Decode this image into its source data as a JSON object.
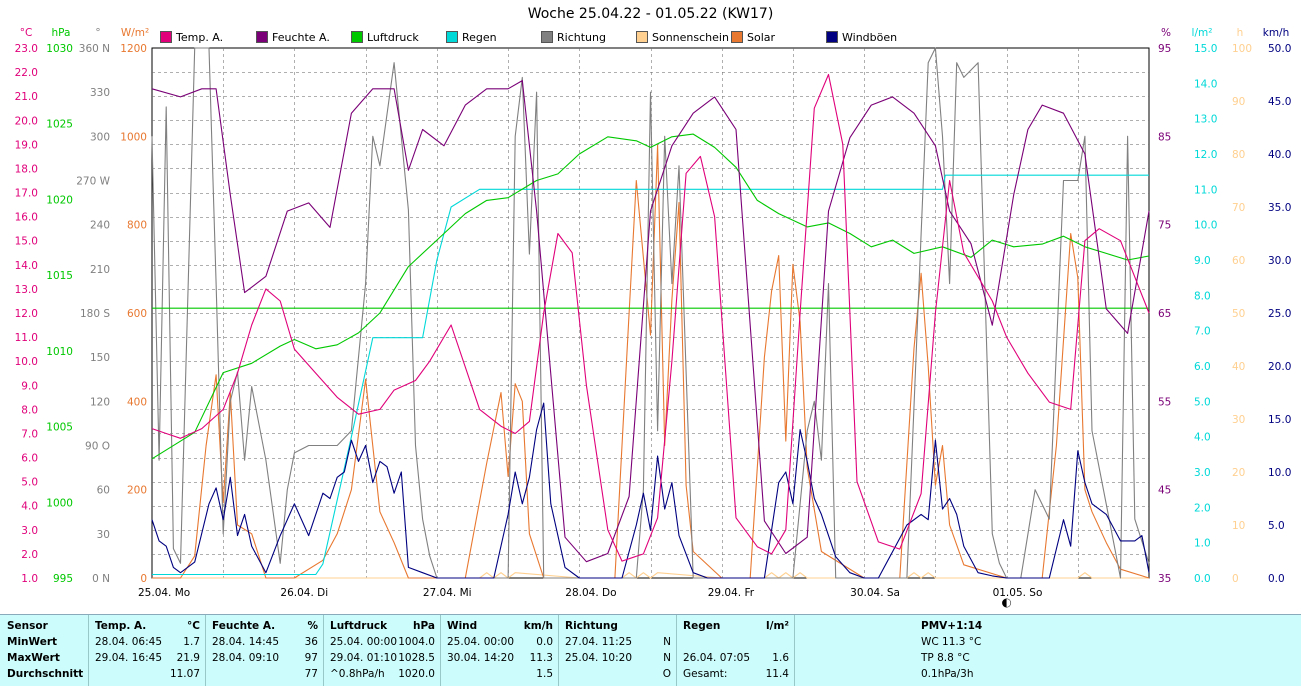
{
  "title": "Woche 25.04.22 - 01.05.22 (KW17)",
  "legend": [
    {
      "label": "Temp. A.",
      "color": "#e0007a"
    },
    {
      "label": "Feuchte A.",
      "color": "#7a0077"
    },
    {
      "label": "Luftdruck",
      "color": "#00c800"
    },
    {
      "label": "Regen",
      "color": "#00d8d8"
    },
    {
      "label": "Richtung",
      "color": "#808080"
    },
    {
      "label": "Sonnenschein",
      "color": "#ffd090"
    },
    {
      "label": "Solar",
      "color": "#e87830"
    },
    {
      "label": "Windböen",
      "color": "#000080"
    }
  ],
  "axis_units": {
    "temp": "°C",
    "pressure": "hPa",
    "direction": "°",
    "solar": "W/m²",
    "humidity": "%",
    "rain": "l/m²",
    "sunshine": "h",
    "wind": "km/h"
  },
  "chart_data": {
    "type": "line",
    "title": "Woche 25.04.22 - 01.05.22 (KW17)",
    "x_labels": [
      "25.04. Mo",
      "26.04. Di",
      "27.04. Mi",
      "28.04. Do",
      "29.04. Fr",
      "30.04. Sa",
      "01.05. So"
    ],
    "x_range_days": [
      0,
      7
    ],
    "grid": true,
    "axes": {
      "temp": {
        "min": 1.0,
        "max": 23.0,
        "ticks": [
          "1.0",
          "2.0",
          "3.0",
          "4.0",
          "5.0",
          "6.0",
          "7.0",
          "8.0",
          "9.0",
          "10.0",
          "11.0",
          "12.0",
          "13.0",
          "14.0",
          "15.0",
          "16.0",
          "17.0",
          "18.0",
          "19.0",
          "20.0",
          "21.0",
          "22.0",
          "23.0"
        ]
      },
      "pressure": {
        "min": 995,
        "max": 1035,
        "ticks": [
          "995",
          "1000",
          "1005",
          "1010",
          "1015",
          "1020",
          "1025",
          "1030"
        ]
      },
      "direction": {
        "min": 0,
        "max": 360,
        "ticks": [
          "0 N",
          "30",
          "60",
          "90 O",
          "120",
          "150",
          "180 S",
          "210",
          "240",
          "270 W",
          "300",
          "330",
          "360 N"
        ]
      },
      "solar": {
        "min": 0,
        "max": 1200,
        "ticks": [
          "0",
          "200",
          "400",
          "600",
          "800",
          "1000",
          "1200"
        ]
      },
      "humidity": {
        "min": 35,
        "max": 100,
        "ticks": [
          "35",
          "45",
          "55",
          "65",
          "75",
          "85",
          "95"
        ]
      },
      "rain": {
        "min": 0,
        "max": 15,
        "ticks": [
          "0.0",
          "1.0",
          "2.0",
          "3.0",
          "4.0",
          "5.0",
          "6.0",
          "7.0",
          "8.0",
          "9.0",
          "10.0",
          "11.0",
          "12.0",
          "13.0",
          "14.0",
          "15.0"
        ]
      },
      "sunshine": {
        "min": 0,
        "max": 100,
        "ticks": [
          "0",
          "10",
          "20",
          "30",
          "40",
          "50",
          "60",
          "70",
          "80",
          "90",
          "100"
        ]
      },
      "wind": {
        "min": 0,
        "max": 50,
        "ticks": [
          "0.0",
          "5.0",
          "10.0",
          "15.0",
          "20.0",
          "25.0",
          "30.0",
          "35.0",
          "40.0",
          "45.0",
          "50.0"
        ]
      }
    },
    "series": [
      {
        "name": "Temp. A.",
        "axis": "temp",
        "color": "#e0007a",
        "x": [
          0,
          0.1,
          0.2,
          0.35,
          0.5,
          0.6,
          0.7,
          0.8,
          0.9,
          1.0,
          1.15,
          1.3,
          1.45,
          1.6,
          1.7,
          1.85,
          1.95,
          2.1,
          2.3,
          2.45,
          2.55,
          2.65,
          2.75,
          2.85,
          2.95,
          3.05,
          3.2,
          3.3,
          3.45,
          3.55,
          3.65,
          3.75,
          3.85,
          3.95,
          4.1,
          4.25,
          4.35,
          4.45,
          4.55,
          4.65,
          4.75,
          4.85,
          4.95,
          5.1,
          5.25,
          5.4,
          5.5,
          5.6,
          5.7,
          5.8,
          5.9,
          6.0,
          6.15,
          6.3,
          6.45,
          6.55,
          6.65,
          6.8,
          7.0
        ],
        "y": [
          7.2,
          7.0,
          6.8,
          7.2,
          8.0,
          9.5,
          11.5,
          13.0,
          12.5,
          10.5,
          9.5,
          8.5,
          7.8,
          8.0,
          8.8,
          9.2,
          10.0,
          11.5,
          8.0,
          7.3,
          7.0,
          7.5,
          12.0,
          15.3,
          14.5,
          9.0,
          3.0,
          1.7,
          2.0,
          3.5,
          10.0,
          17.8,
          18.5,
          16.0,
          3.5,
          2.3,
          2.0,
          3.0,
          12.0,
          20.5,
          21.9,
          19.0,
          5.0,
          2.5,
          2.2,
          4.5,
          12.0,
          17.5,
          14.5,
          13.5,
          12.5,
          11.0,
          9.5,
          8.3,
          8.0,
          15.0,
          15.5,
          15.0,
          12.0
        ]
      },
      {
        "name": "Feuchte A.",
        "axis": "humidity",
        "color": "#7a0077",
        "x": [
          0,
          0.2,
          0.35,
          0.45,
          0.55,
          0.65,
          0.8,
          0.95,
          1.1,
          1.25,
          1.4,
          1.55,
          1.7,
          1.8,
          1.9,
          2.05,
          2.2,
          2.35,
          2.5,
          2.6,
          2.7,
          2.8,
          2.9,
          3.05,
          3.2,
          3.35,
          3.5,
          3.65,
          3.8,
          3.95,
          4.1,
          4.3,
          4.45,
          4.6,
          4.75,
          4.9,
          5.05,
          5.2,
          5.35,
          5.5,
          5.6,
          5.75,
          5.9,
          6.05,
          6.15,
          6.25,
          6.4,
          6.55,
          6.7,
          6.85,
          7.0
        ],
        "y": [
          95,
          94,
          95,
          95,
          82,
          70,
          72,
          80,
          81,
          78,
          92,
          95,
          95,
          85,
          90,
          88,
          93,
          95,
          95,
          96,
          80,
          60,
          40,
          37,
          38,
          45,
          80,
          88,
          92,
          94,
          90,
          42,
          38,
          40,
          80,
          89,
          93,
          94,
          92,
          88,
          80,
          76,
          66,
          82,
          90,
          93,
          92,
          87,
          68,
          65,
          80
        ]
      },
      {
        "name": "Luftdruck",
        "axis": "pressure",
        "color": "#00c800",
        "x": [
          0,
          0.3,
          0.5,
          0.7,
          0.9,
          1.0,
          1.15,
          1.3,
          1.45,
          1.6,
          1.8,
          2.0,
          2.2,
          2.35,
          2.5,
          2.7,
          2.85,
          3.0,
          3.2,
          3.4,
          3.5,
          3.65,
          3.8,
          3.95,
          4.1,
          4.25,
          4.4,
          4.6,
          4.75,
          4.9,
          5.05,
          5.2,
          5.35,
          5.55,
          5.75,
          5.9,
          6.05,
          6.25,
          6.4,
          6.55,
          6.7,
          6.85,
          7.0
        ],
        "y": [
          1004.0,
          1006.0,
          1010.5,
          1011.2,
          1012.5,
          1013.0,
          1012.3,
          1012.6,
          1013.5,
          1015.0,
          1018.5,
          1020.5,
          1022.5,
          1023.5,
          1023.7,
          1025.0,
          1025.5,
          1027.0,
          1028.3,
          1028.0,
          1027.5,
          1028.3,
          1028.5,
          1027.5,
          1026.0,
          1023.5,
          1022.5,
          1021.5,
          1021.8,
          1021.0,
          1020.0,
          1020.5,
          1019.5,
          1020.0,
          1019.2,
          1020.5,
          1020.0,
          1020.2,
          1020.8,
          1020.0,
          1019.5,
          1019.0,
          1019.3
        ]
      },
      {
        "name": "Regen",
        "axis": "rain",
        "color": "#00d8d8",
        "x": [
          0,
          1.15,
          1.2,
          1.4,
          1.55,
          1.65,
          1.9,
          2.0,
          2.1,
          2.3,
          2.5,
          3.0,
          4.0,
          5.0,
          5.55,
          5.57,
          6.0,
          7.0
        ],
        "y": [
          0.1,
          0.1,
          0.4,
          4.0,
          6.8,
          6.8,
          6.8,
          9.0,
          10.5,
          11.0,
          11.0,
          11.0,
          11.0,
          11.0,
          11.0,
          11.4,
          11.4,
          11.4
        ]
      },
      {
        "name": "Richtung",
        "axis": "direction",
        "color": "#808080",
        "x": [
          0,
          0.05,
          0.1,
          0.15,
          0.2,
          0.3,
          0.4,
          0.45,
          0.5,
          0.55,
          0.6,
          0.65,
          0.7,
          0.8,
          0.9,
          0.95,
          1.0,
          1.1,
          1.2,
          1.3,
          1.4,
          1.5,
          1.55,
          1.6,
          1.7,
          1.8,
          1.85,
          1.9,
          1.95,
          2.0,
          2.2,
          2.4,
          2.5,
          2.55,
          2.6,
          2.65,
          2.7,
          2.75,
          2.8,
          2.9,
          3.0,
          3.2,
          3.4,
          3.45,
          3.5,
          3.55,
          3.6,
          3.65,
          3.7,
          3.8,
          3.9,
          4.0,
          4.2,
          4.4,
          4.5,
          4.6,
          4.65,
          4.7,
          4.75,
          4.8,
          4.9,
          5.0,
          5.1,
          5.3,
          5.45,
          5.5,
          5.55,
          5.6,
          5.65,
          5.7,
          5.8,
          5.9,
          5.95,
          6.0,
          6.1,
          6.2,
          6.3,
          6.4,
          6.5,
          6.55,
          6.6,
          6.7,
          6.8,
          6.85,
          6.9,
          7.0
        ],
        "y": [
          300,
          80,
          320,
          20,
          10,
          360,
          360,
          200,
          30,
          120,
          140,
          80,
          130,
          80,
          10,
          60,
          85,
          90,
          90,
          90,
          100,
          200,
          300,
          280,
          350,
          250,
          90,
          40,
          15,
          0,
          0,
          0,
          0,
          300,
          340,
          220,
          330,
          0,
          0,
          0,
          0,
          0,
          0,
          60,
          330,
          100,
          300,
          200,
          280,
          0,
          0,
          0,
          0,
          0,
          0,
          100,
          120,
          80,
          200,
          0,
          0,
          0,
          0,
          0,
          350,
          360,
          300,
          200,
          350,
          340,
          350,
          30,
          10,
          0,
          0,
          60,
          40,
          270,
          270,
          300,
          100,
          50,
          0,
          300,
          40,
          10
        ]
      },
      {
        "name": "Sonnenschein",
        "axis": "sunshine",
        "color": "#ffd090",
        "x": [
          0,
          2.3,
          2.35,
          2.4,
          2.45,
          2.5,
          2.55,
          3.0,
          3.3,
          3.35,
          3.4,
          3.45,
          3.5,
          3.55,
          4.0,
          4.3,
          4.35,
          4.4,
          4.45,
          4.5,
          4.55,
          4.6,
          5.0,
          5.3,
          5.35,
          5.4,
          5.45,
          5.5,
          6.0,
          6.5,
          6.55,
          6.6,
          7.0
        ],
        "y": [
          0,
          0,
          1,
          0,
          1,
          0,
          1,
          0,
          0,
          1,
          0,
          1,
          0,
          1,
          0,
          0,
          1,
          0,
          1,
          0,
          1,
          0,
          0,
          0,
          1,
          0,
          1,
          0,
          0,
          0,
          1,
          0,
          0
        ]
      },
      {
        "name": "Solar",
        "axis": "solar",
        "color": "#e87830",
        "x": [
          0,
          0.2,
          0.3,
          0.38,
          0.45,
          0.5,
          0.55,
          0.6,
          0.7,
          0.8,
          1.0,
          1.2,
          1.3,
          1.4,
          1.5,
          1.6,
          1.7,
          1.8,
          2.0,
          2.2,
          2.35,
          2.45,
          2.5,
          2.55,
          2.6,
          2.65,
          2.75,
          3.0,
          3.25,
          3.35,
          3.4,
          3.5,
          3.55,
          3.6,
          3.65,
          3.7,
          3.75,
          3.8,
          4.0,
          4.2,
          4.3,
          4.35,
          4.4,
          4.45,
          4.5,
          4.55,
          4.6,
          4.7,
          5.0,
          5.25,
          5.35,
          5.4,
          5.45,
          5.5,
          5.55,
          5.6,
          5.7,
          6.0,
          6.25,
          6.35,
          6.45,
          6.5,
          6.55,
          6.6,
          6.7,
          6.8,
          7.0
        ],
        "y": [
          0,
          0,
          50,
          300,
          460,
          170,
          420,
          120,
          100,
          0,
          0,
          40,
          100,
          200,
          450,
          150,
          80,
          0,
          0,
          0,
          260,
          420,
          230,
          440,
          400,
          100,
          0,
          0,
          0,
          600,
          900,
          550,
          980,
          300,
          630,
          850,
          210,
          60,
          0,
          0,
          500,
          650,
          730,
          310,
          710,
          580,
          250,
          60,
          0,
          0,
          520,
          690,
          480,
          210,
          300,
          120,
          30,
          0,
          0,
          300,
          780,
          680,
          200,
          150,
          80,
          20,
          0
        ]
      },
      {
        "name": "Windböen",
        "axis": "wind",
        "color": "#000080",
        "x": [
          0,
          0.05,
          0.1,
          0.15,
          0.2,
          0.3,
          0.4,
          0.45,
          0.5,
          0.55,
          0.6,
          0.65,
          0.7,
          0.8,
          0.9,
          1.0,
          1.1,
          1.2,
          1.25,
          1.3,
          1.35,
          1.4,
          1.45,
          1.5,
          1.55,
          1.6,
          1.65,
          1.7,
          1.75,
          1.8,
          1.9,
          2.0,
          2.2,
          2.4,
          2.5,
          2.55,
          2.6,
          2.65,
          2.7,
          2.75,
          2.8,
          2.9,
          3.0,
          3.3,
          3.4,
          3.45,
          3.5,
          3.55,
          3.6,
          3.65,
          3.7,
          3.8,
          3.9,
          4.0,
          4.3,
          4.4,
          4.45,
          4.5,
          4.55,
          4.6,
          4.65,
          4.7,
          4.8,
          4.9,
          5.0,
          5.1,
          5.3,
          5.4,
          5.45,
          5.5,
          5.55,
          5.6,
          5.65,
          5.7,
          5.8,
          5.9,
          6.0,
          6.1,
          6.3,
          6.4,
          6.45,
          6.5,
          6.55,
          6.6,
          6.7,
          6.8,
          6.9,
          6.95,
          7.0
        ],
        "y": [
          5.5,
          3.5,
          3.0,
          1.0,
          0.5,
          1.5,
          7.0,
          8.5,
          5.5,
          9.5,
          4.0,
          6.0,
          3.0,
          0.5,
          4.0,
          7.0,
          4.0,
          8.0,
          7.5,
          9.5,
          10.0,
          13.0,
          11.0,
          12.5,
          9.0,
          11.0,
          10.5,
          8.0,
          10.0,
          1.0,
          0.5,
          0,
          0,
          0,
          6.0,
          10.0,
          7.0,
          9.5,
          14.0,
          16.5,
          7.0,
          1.0,
          0,
          0,
          5.0,
          8.0,
          4.5,
          11.5,
          6.5,
          9.0,
          4.0,
          0.5,
          0,
          0,
          0,
          9.0,
          10.0,
          7.0,
          14.0,
          11.0,
          7.5,
          6.0,
          2.0,
          0.5,
          0,
          0,
          5.0,
          6.0,
          5.5,
          13.0,
          6.5,
          7.5,
          6.0,
          3.0,
          0.5,
          0.2,
          0,
          0,
          0,
          5.5,
          3.0,
          12.0,
          9.0,
          7.0,
          6.0,
          3.5,
          3.5,
          4.0,
          0.5
        ]
      },
      {
        "name": "PMV",
        "axis": "temp",
        "color": "#00c800",
        "x": [
          0,
          7.0
        ],
        "y": [
          12.2,
          12.2
        ]
      }
    ]
  },
  "markers": {
    "moon_day": 6.0
  },
  "stats": {
    "row_labels": [
      "Sensor",
      "MinWert",
      "MaxWert",
      "Durchschnitt"
    ],
    "temp": {
      "header": "Temp. A.",
      "unit": "°C",
      "min_time": "28.04.  06:45",
      "min_val": "1.7",
      "max_time": "29.04.  16:45",
      "max_val": "21.9",
      "avg": "11.07"
    },
    "humidity": {
      "header": "Feuchte A.",
      "unit": "%",
      "min_time": "28.04.  14:45",
      "min_val": "36",
      "max_time": "28.04.  09:10",
      "max_val": "97",
      "avg": "77"
    },
    "pressure": {
      "header": "Luftdruck",
      "unit": "hPa",
      "min_time": "25.04.  00:00",
      "min_val": "1004.0",
      "max_time": "29.04.  01:10",
      "max_val": "1028.5",
      "avg_label": "^0.8hPa/h",
      "avg": "1020.0"
    },
    "wind": {
      "header": "Wind",
      "unit": "km/h",
      "min_time": "25.04.  00:00",
      "min_val": "0.0",
      "max_time": "30.04.  14:20",
      "max_val": "11.3",
      "avg": "1.5"
    },
    "direction": {
      "header": "Richtung",
      "min_time": "27.04.  11:25",
      "min_val": "N",
      "max_time": "25.04.  10:20",
      "max_val": "N",
      "avg": "O"
    },
    "rain": {
      "header": "Regen",
      "unit": "l/m²",
      "max_time": "26.04.  07:05",
      "max_val": "1.6",
      "total_label": "Gesamt:",
      "total": "11.4"
    },
    "pmv": {
      "header": "PMV+1:14",
      "line1": "WC 11.3 °C",
      "line2": "TP 8.8 °C",
      "line3": "0.1hPa/3h"
    }
  }
}
